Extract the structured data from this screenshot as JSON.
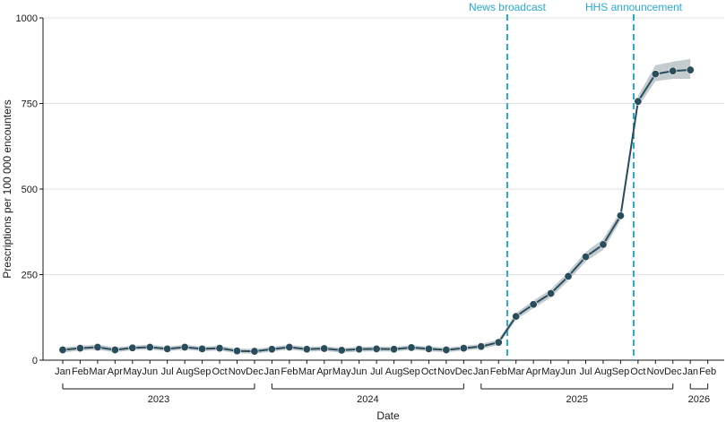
{
  "chart_data": {
    "type": "line",
    "title": "",
    "xlabel": "Date",
    "ylabel": "Prescriptions per 100 000 encounters",
    "ylim": [
      0,
      1000
    ],
    "yticks": [
      0,
      250,
      500,
      750,
      1000
    ],
    "grid": "horizontal",
    "month_labels": [
      "Jan",
      "Feb",
      "Mar",
      "Apr",
      "May",
      "Jun",
      "Jul",
      "Aug",
      "Sep",
      "Oct",
      "Nov",
      "Dec",
      "Jan",
      "Feb",
      "Mar",
      "Apr",
      "May",
      "Jun",
      "Jul",
      "Aug",
      "Sep",
      "Oct",
      "Nov",
      "Dec",
      "Jan",
      "Feb",
      "Mar",
      "Apr",
      "May",
      "Jun",
      "Jul",
      "Aug",
      "Sep",
      "Oct",
      "Nov",
      "Dec",
      "Jan",
      "Feb"
    ],
    "year_groups": [
      {
        "label": "2023",
        "start": 0,
        "end": 11
      },
      {
        "label": "2024",
        "start": 12,
        "end": 23
      },
      {
        "label": "2025",
        "start": 24,
        "end": 35
      },
      {
        "label": "2026",
        "start": 36,
        "end": 37
      }
    ],
    "series": [
      {
        "x_dates": [
          "2023-01",
          "2023-02",
          "2023-03",
          "2023-04",
          "2023-05",
          "2023-06",
          "2023-07",
          "2023-08",
          "2023-09",
          "2023-10",
          "2023-11",
          "2023-12",
          "2024-01",
          "2024-02",
          "2024-03",
          "2024-04",
          "2024-05",
          "2024-06",
          "2024-07",
          "2024-08",
          "2024-09",
          "2024-10",
          "2024-11",
          "2024-12",
          "2025-01",
          "2025-02",
          "2025-03",
          "2025-04",
          "2025-05",
          "2025-06",
          "2025-07",
          "2025-08",
          "2025-09",
          "2025-10",
          "2025-11",
          "2025-12",
          "2026-01"
        ],
        "values": [
          30,
          35,
          38,
          30,
          36,
          38,
          33,
          38,
          33,
          35,
          27,
          26,
          32,
          38,
          32,
          34,
          29,
          32,
          33,
          32,
          37,
          33,
          30,
          35,
          40,
          52,
          128,
          163,
          195,
          245,
          302,
          338,
          422,
          756,
          836,
          845,
          848
        ],
        "lower": [
          22,
          28,
          30,
          23,
          29,
          31,
          26,
          31,
          26,
          28,
          20,
          19,
          25,
          31,
          25,
          27,
          22,
          25,
          26,
          25,
          30,
          26,
          23,
          28,
          33,
          44,
          118,
          152,
          183,
          232,
          288,
          322,
          408,
          740,
          815,
          822,
          822
        ],
        "upper": [
          38,
          42,
          46,
          37,
          43,
          45,
          40,
          45,
          40,
          42,
          34,
          33,
          39,
          45,
          39,
          41,
          36,
          39,
          40,
          39,
          44,
          40,
          37,
          42,
          47,
          60,
          138,
          174,
          207,
          258,
          316,
          354,
          436,
          772,
          862,
          872,
          880
        ]
      }
    ],
    "events": [
      {
        "label": "News broadcast",
        "x_index": 25.5
      },
      {
        "label": "HHS announcement",
        "x_index": 32.75
      }
    ],
    "colors": {
      "line": "#2a4d5c",
      "marker": "#2a4d5c",
      "band": "#b8c2c7",
      "event": "#29a9d6",
      "grid": "#e0e0e0"
    }
  }
}
